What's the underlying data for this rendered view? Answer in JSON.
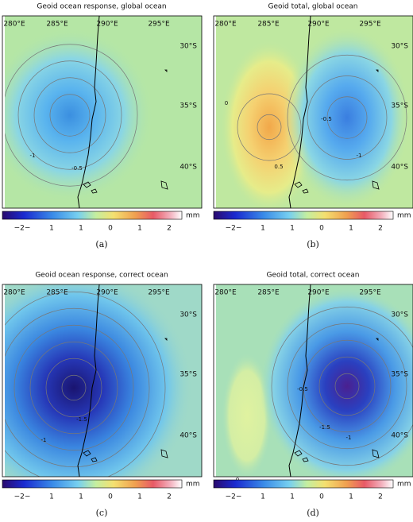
{
  "panels": [
    {
      "title": "Geoid ocean response, global ocean",
      "lon_labels": [
        "280°E",
        "285°E",
        "290°E",
        "295°E"
      ],
      "lat_labels": [
        "30°S",
        "35°S",
        "40°S"
      ],
      "colorbar_labels": [
        "−2−",
        "1",
        "1",
        "0",
        "1",
        "2"
      ],
      "unit": "mm",
      "caption": "(a)",
      "contour_labels": [
        "-1",
        "-0.5"
      ]
    },
    {
      "title": "Geoid total, global ocean",
      "lon_labels": [
        "280°E",
        "285°E",
        "290°E",
        "295°E"
      ],
      "lat_labels": [
        "30°S",
        "35°S",
        "40°S"
      ],
      "colorbar_labels": [
        "−2−",
        "1",
        "1",
        "0",
        "1",
        "2"
      ],
      "unit": "mm",
      "caption": "(b)",
      "contour_labels": [
        "0",
        "0.5",
        "-0.5",
        "-1"
      ]
    },
    {
      "title": "Geoid ocean response, correct ocean",
      "lon_labels": [
        "280°E",
        "285°E",
        "290°E",
        "295°E"
      ],
      "lat_labels": [
        "30°S",
        "35°S",
        "40°S"
      ],
      "colorbar_labels": [
        "−2−",
        "1",
        "1",
        "0",
        "1",
        "2"
      ],
      "unit": "mm",
      "caption": "(c)",
      "contour_labels": [
        "-1.5",
        "-1"
      ]
    },
    {
      "title": "Geoid total, correct ocean",
      "lon_labels": [
        "280°E",
        "285°E",
        "290°E",
        "295°E"
      ],
      "lat_labels": [
        "30°S",
        "35°S",
        "40°S"
      ],
      "colorbar_labels": [
        "−2−",
        "1",
        "1",
        "0",
        "1",
        "2"
      ],
      "unit": "mm",
      "caption": "(d)",
      "contour_labels": [
        "-0.5",
        "-1.5",
        "-1",
        "0"
      ]
    }
  ]
}
